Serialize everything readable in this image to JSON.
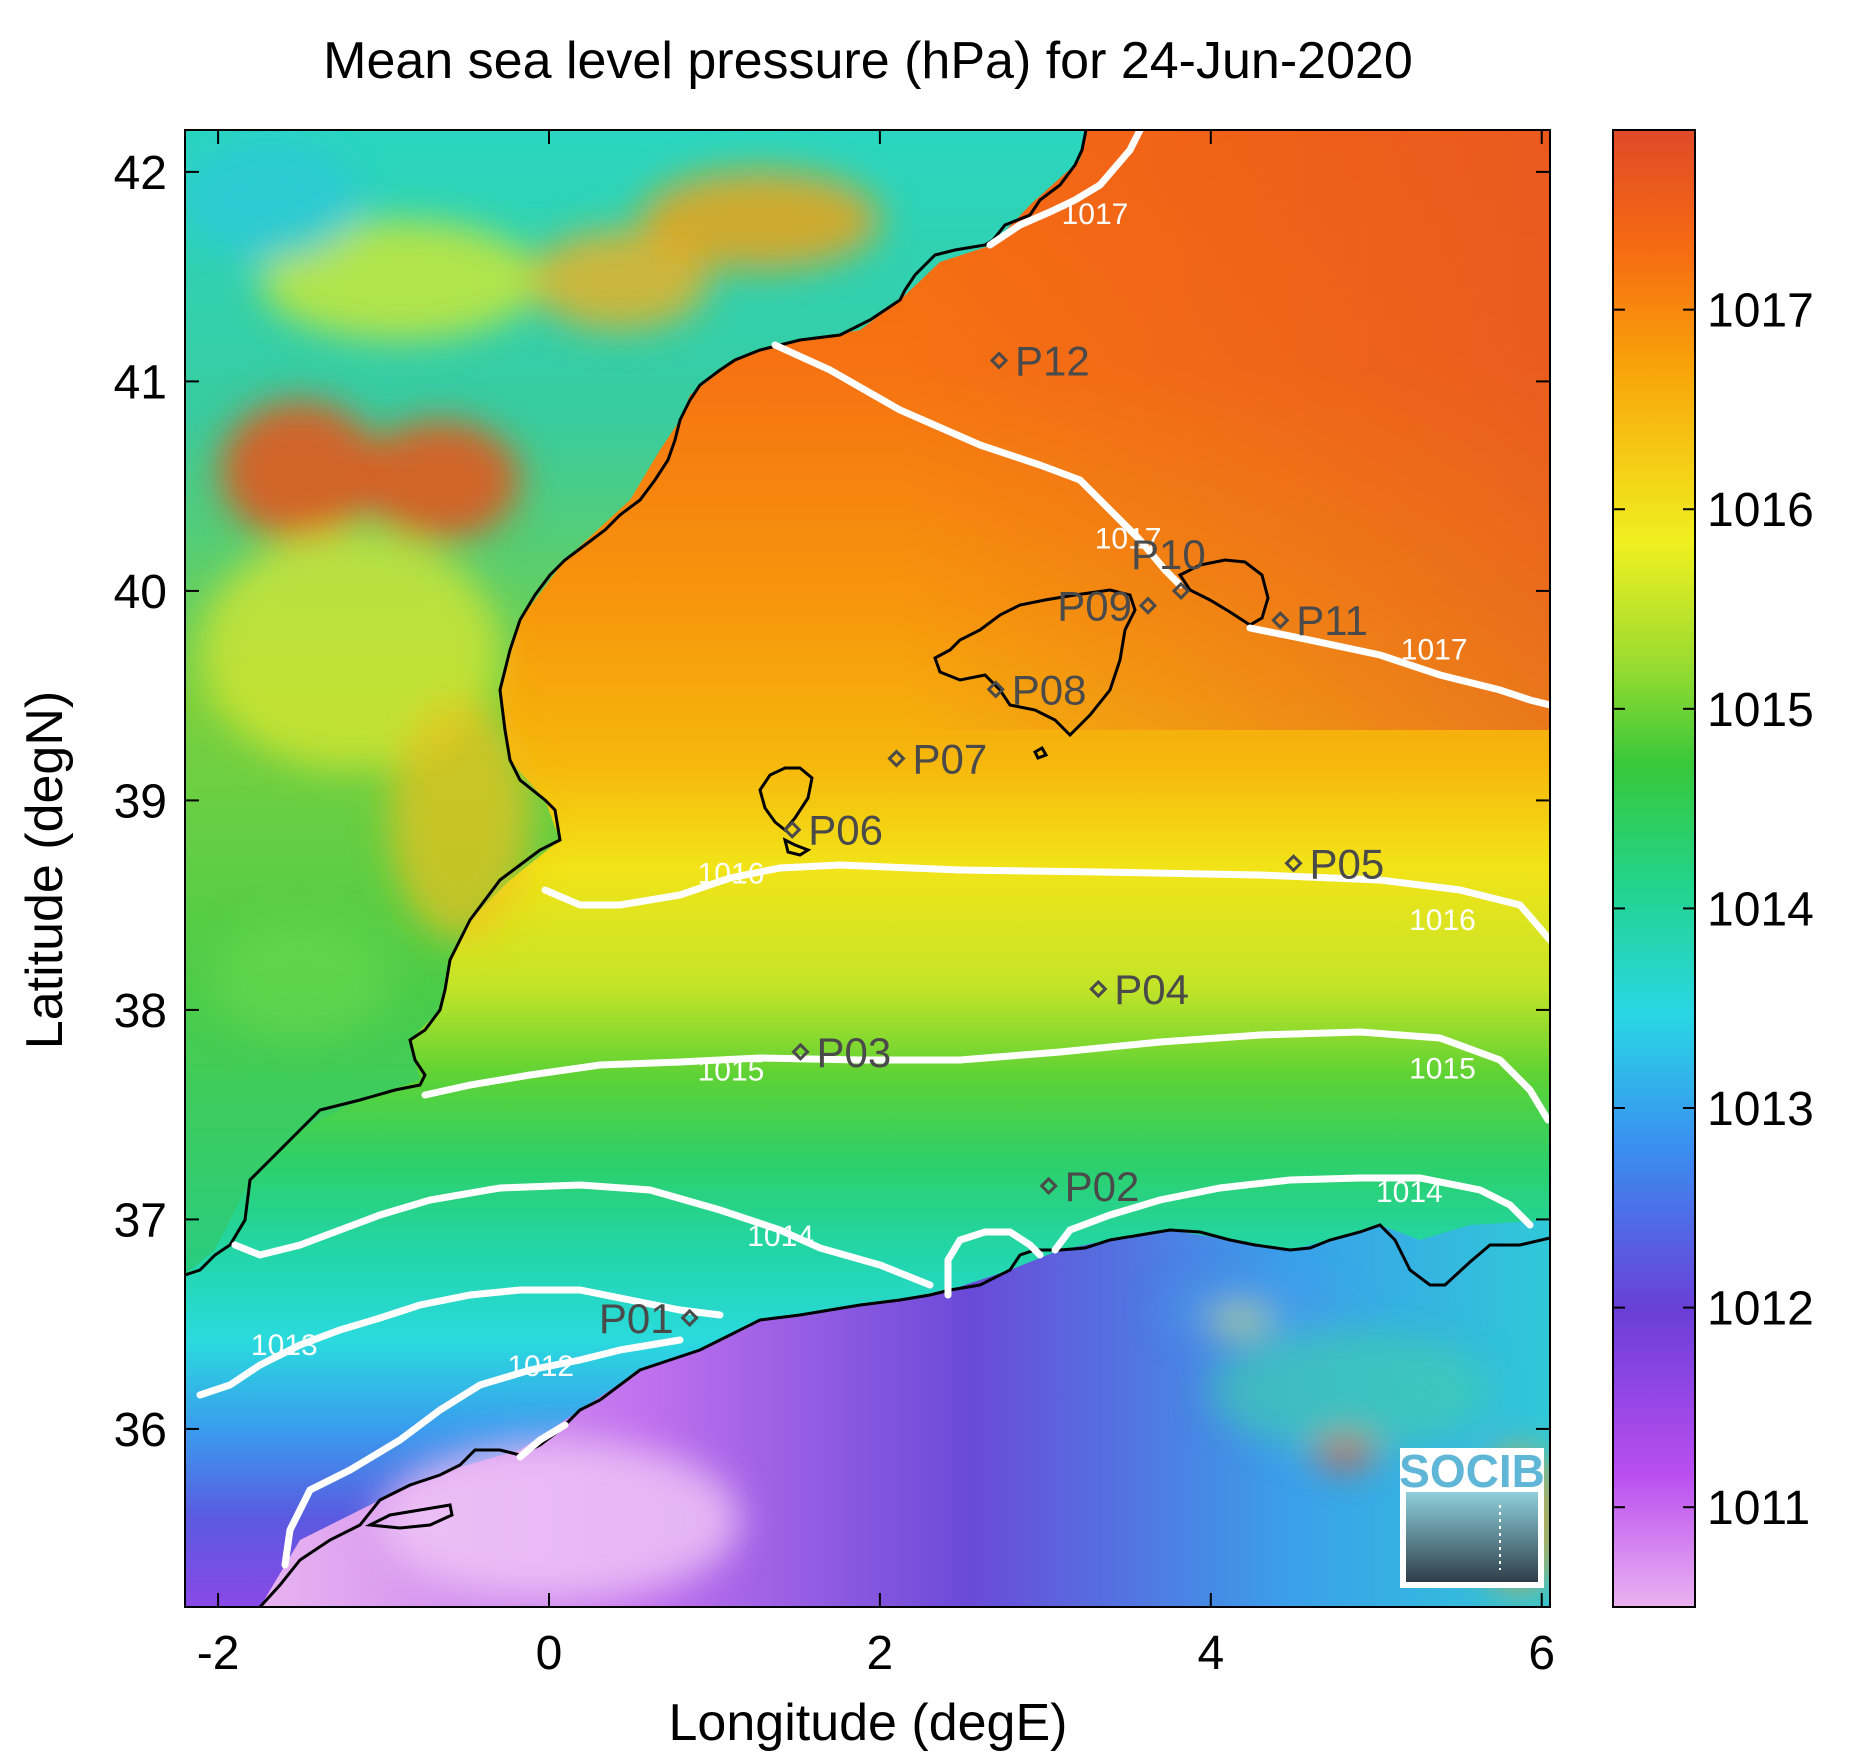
{
  "title": "Mean sea level pressure (hPa) for 24-Jun-2020",
  "x_axis": {
    "label": "Longitude (degE)",
    "range": [
      -2.2,
      6.05
    ],
    "ticks": [
      {
        "v": -2,
        "label": "-2"
      },
      {
        "v": 0,
        "label": "0"
      },
      {
        "v": 2,
        "label": "2"
      },
      {
        "v": 4,
        "label": "4"
      },
      {
        "v": 6,
        "label": "6"
      }
    ]
  },
  "y_axis": {
    "label": "Latitude (degN)",
    "range": [
      35.15,
      42.2
    ],
    "ticks": [
      {
        "v": 36,
        "label": "36"
      },
      {
        "v": 37,
        "label": "37"
      },
      {
        "v": 38,
        "label": "38"
      },
      {
        "v": 39,
        "label": "39"
      },
      {
        "v": 40,
        "label": "40"
      },
      {
        "v": 41,
        "label": "41"
      },
      {
        "v": 42,
        "label": "42"
      }
    ]
  },
  "colorbar": {
    "range": [
      1010.5,
      1017.9
    ],
    "colormap": "socib-pressure",
    "stops": [
      "#eab2f0",
      "#ba4ef0",
      "#6b3ed8",
      "#3a8ef0",
      "#2ad6e6",
      "#22d48a",
      "#38c83a",
      "#9cdc30",
      "#f0f020",
      "#f9a30a",
      "#f66a12",
      "#e04a28"
    ],
    "ticks": [
      {
        "v": 1011,
        "label": "1011"
      },
      {
        "v": 1012,
        "label": "1012"
      },
      {
        "v": 1013,
        "label": "1013"
      },
      {
        "v": 1014,
        "label": "1014"
      },
      {
        "v": 1015,
        "label": "1015"
      },
      {
        "v": 1016,
        "label": "1016"
      },
      {
        "v": 1017,
        "label": "1017"
      }
    ]
  },
  "contour_labels": [
    {
      "text": "1017",
      "lon": 3.3,
      "lat": 41.8
    },
    {
      "text": "1017",
      "lon": 3.5,
      "lat": 40.25
    },
    {
      "text": "1017",
      "lon": 5.35,
      "lat": 39.72
    },
    {
      "text": "1016",
      "lon": 1.1,
      "lat": 38.65
    },
    {
      "text": "1016",
      "lon": 5.4,
      "lat": 38.43
    },
    {
      "text": "1015",
      "lon": 1.1,
      "lat": 37.71
    },
    {
      "text": "1015",
      "lon": 5.4,
      "lat": 37.72
    },
    {
      "text": "1014",
      "lon": 1.4,
      "lat": 36.92
    },
    {
      "text": "1014",
      "lon": 5.2,
      "lat": 37.13
    },
    {
      "text": "1013",
      "lon": -1.6,
      "lat": 36.4
    },
    {
      "text": "1012",
      "lon": -0.05,
      "lat": 36.3
    }
  ],
  "stations": [
    {
      "id": "P01",
      "lon": 0.85,
      "lat": 36.53,
      "anchor": "left"
    },
    {
      "id": "P02",
      "lon": 3.02,
      "lat": 37.16,
      "anchor": "right"
    },
    {
      "id": "P03",
      "lon": 1.52,
      "lat": 37.8,
      "anchor": "right"
    },
    {
      "id": "P04",
      "lon": 3.32,
      "lat": 38.1,
      "anchor": "right"
    },
    {
      "id": "P05",
      "lon": 4.5,
      "lat": 38.7,
      "anchor": "right"
    },
    {
      "id": "P06",
      "lon": 1.47,
      "lat": 38.86,
      "anchor": "right"
    },
    {
      "id": "P07",
      "lon": 2.1,
      "lat": 39.2,
      "anchor": "right"
    },
    {
      "id": "P08",
      "lon": 2.7,
      "lat": 39.53,
      "anchor": "right"
    },
    {
      "id": "P09",
      "lon": 3.62,
      "lat": 39.93,
      "anchor": "left"
    },
    {
      "id": "P10",
      "lon": 3.82,
      "lat": 40.0,
      "anchor": "above"
    },
    {
      "id": "P11",
      "lon": 4.42,
      "lat": 39.86,
      "anchor": "right"
    },
    {
      "id": "P12",
      "lon": 2.72,
      "lat": 41.1,
      "anchor": "right"
    }
  ],
  "logo": {
    "text": "SOCIB"
  }
}
